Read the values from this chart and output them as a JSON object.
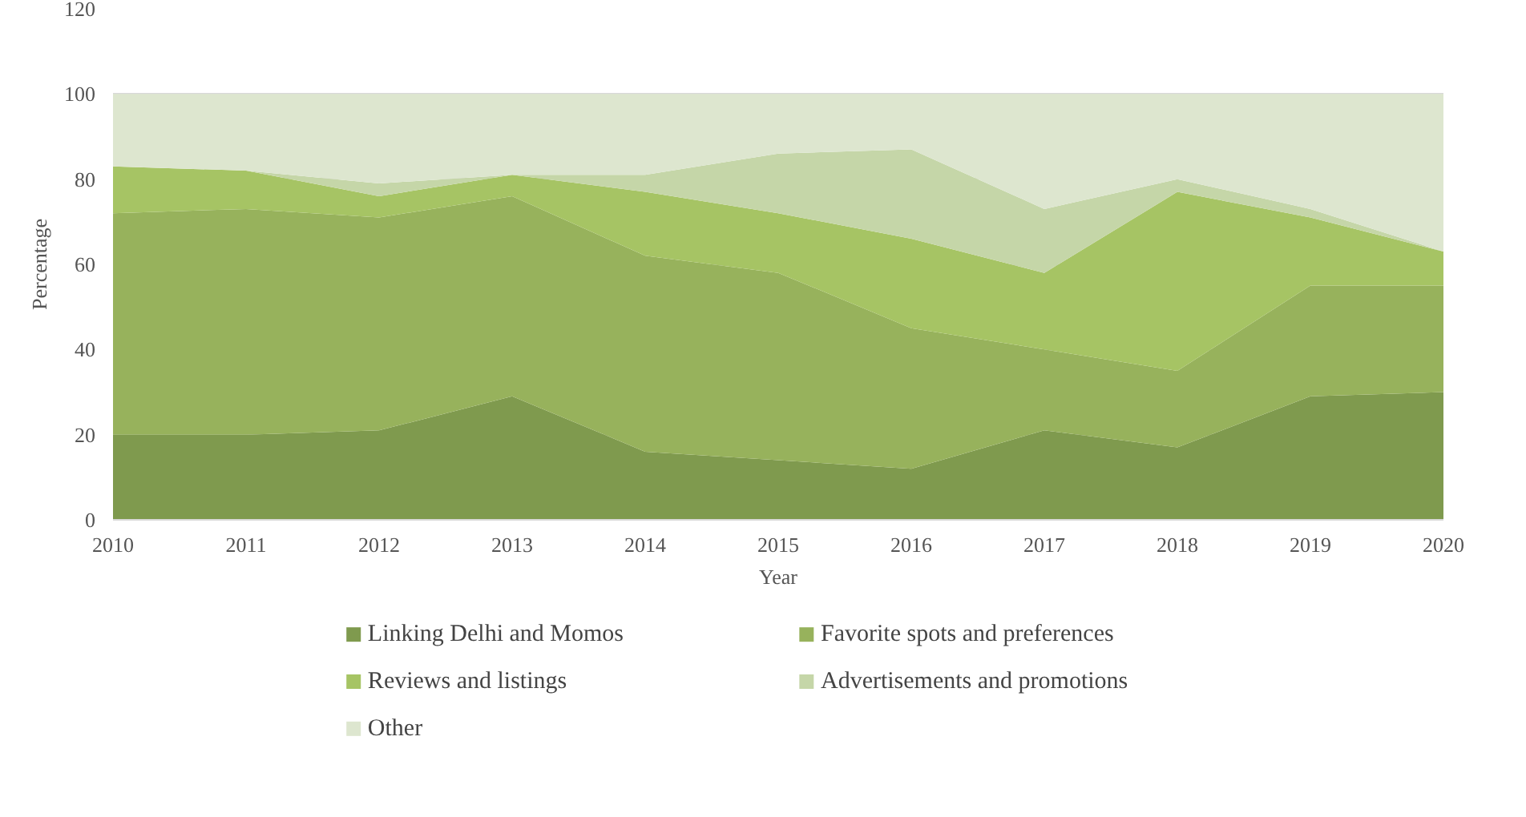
{
  "chart_data": {
    "type": "area",
    "stacked": true,
    "xlabel": "Year",
    "ylabel": "Percentage",
    "x": [
      2010,
      2011,
      2012,
      2013,
      2014,
      2015,
      2016,
      2017,
      2018,
      2019,
      2020
    ],
    "series": [
      {
        "name": "Linking Delhi and Momos",
        "color": "#7f9a4e",
        "values": [
          20,
          20,
          21,
          29,
          16,
          14,
          12,
          21,
          17,
          29,
          30
        ]
      },
      {
        "name": "Favorite spots and preferences",
        "color": "#97b25c",
        "values": [
          52,
          53,
          50,
          47,
          46,
          44,
          33,
          19,
          18,
          26,
          25
        ]
      },
      {
        "name": "Reviews and listings",
        "color": "#a6c464",
        "values": [
          11,
          9,
          5,
          5,
          15,
          14,
          21,
          18,
          42,
          16,
          8
        ]
      },
      {
        "name": "Advertisements and promotions",
        "color": "#c5d6a8",
        "values": [
          0,
          0,
          3,
          0,
          4,
          14,
          21,
          15,
          3,
          2,
          0
        ]
      },
      {
        "name": "Other",
        "color": "#dde6cf",
        "values": [
          17,
          18,
          21,
          19,
          19,
          14,
          13,
          27,
          20,
          27,
          37
        ]
      }
    ],
    "xlim": [
      2010,
      2020
    ],
    "xticks": [
      2010,
      2011,
      2012,
      2013,
      2014,
      2015,
      2016,
      2017,
      2018,
      2019,
      2020
    ],
    "ylim": [
      0,
      120
    ],
    "yticks": [
      0,
      20,
      40,
      60,
      80,
      100,
      120
    ],
    "grid": "y",
    "legend": "bottom"
  }
}
